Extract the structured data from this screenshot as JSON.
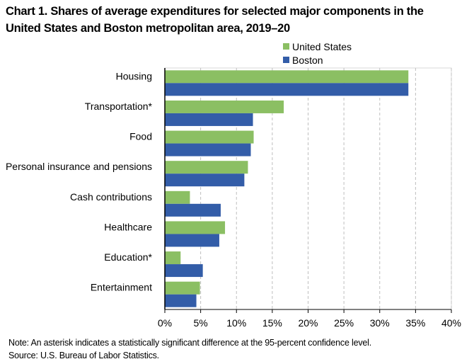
{
  "title_line1": "Chart 1. Shares of average expenditures for selected major components in the",
  "title_line2": "United States and Boston metropolitan area, 2019–20",
  "note": "Note: An asterisk indicates a statistically significant difference at the 95-percent confidence level.",
  "source": "Source: U.S. Bureau of Labor Statistics.",
  "colors": {
    "united_states": "#8bbf63",
    "boston": "#335da8",
    "grid": "#bfbfbf",
    "axis": "#000000"
  },
  "chart_data": {
    "type": "bar",
    "orientation": "horizontal",
    "title": "Chart 1. Shares of average expenditures for selected major components in the United States and Boston metropolitan area, 2019–20",
    "xlabel": "",
    "ylabel": "",
    "xlim": [
      0,
      40
    ],
    "xticks": [
      0,
      5,
      10,
      15,
      20,
      25,
      30,
      35,
      40
    ],
    "xtick_labels": [
      "0%",
      "5%",
      "10%",
      "15%",
      "20%",
      "25%",
      "30%",
      "35%",
      "40%"
    ],
    "grid": "vertical dashed",
    "legend": {
      "position": "top-center",
      "entries": [
        "United States",
        "Boston"
      ]
    },
    "categories": [
      "Housing",
      "Transportation*",
      "Food",
      "Personal insurance and pensions",
      "Cash contributions",
      "Healthcare",
      "Education*",
      "Entertainment"
    ],
    "series": [
      {
        "name": "United States",
        "values": [
          34.0,
          16.6,
          12.4,
          11.6,
          3.5,
          8.4,
          2.2,
          4.9
        ]
      },
      {
        "name": "Boston",
        "values": [
          34.0,
          12.3,
          12.0,
          11.1,
          7.8,
          7.6,
          5.3,
          4.4
        ]
      }
    ]
  }
}
